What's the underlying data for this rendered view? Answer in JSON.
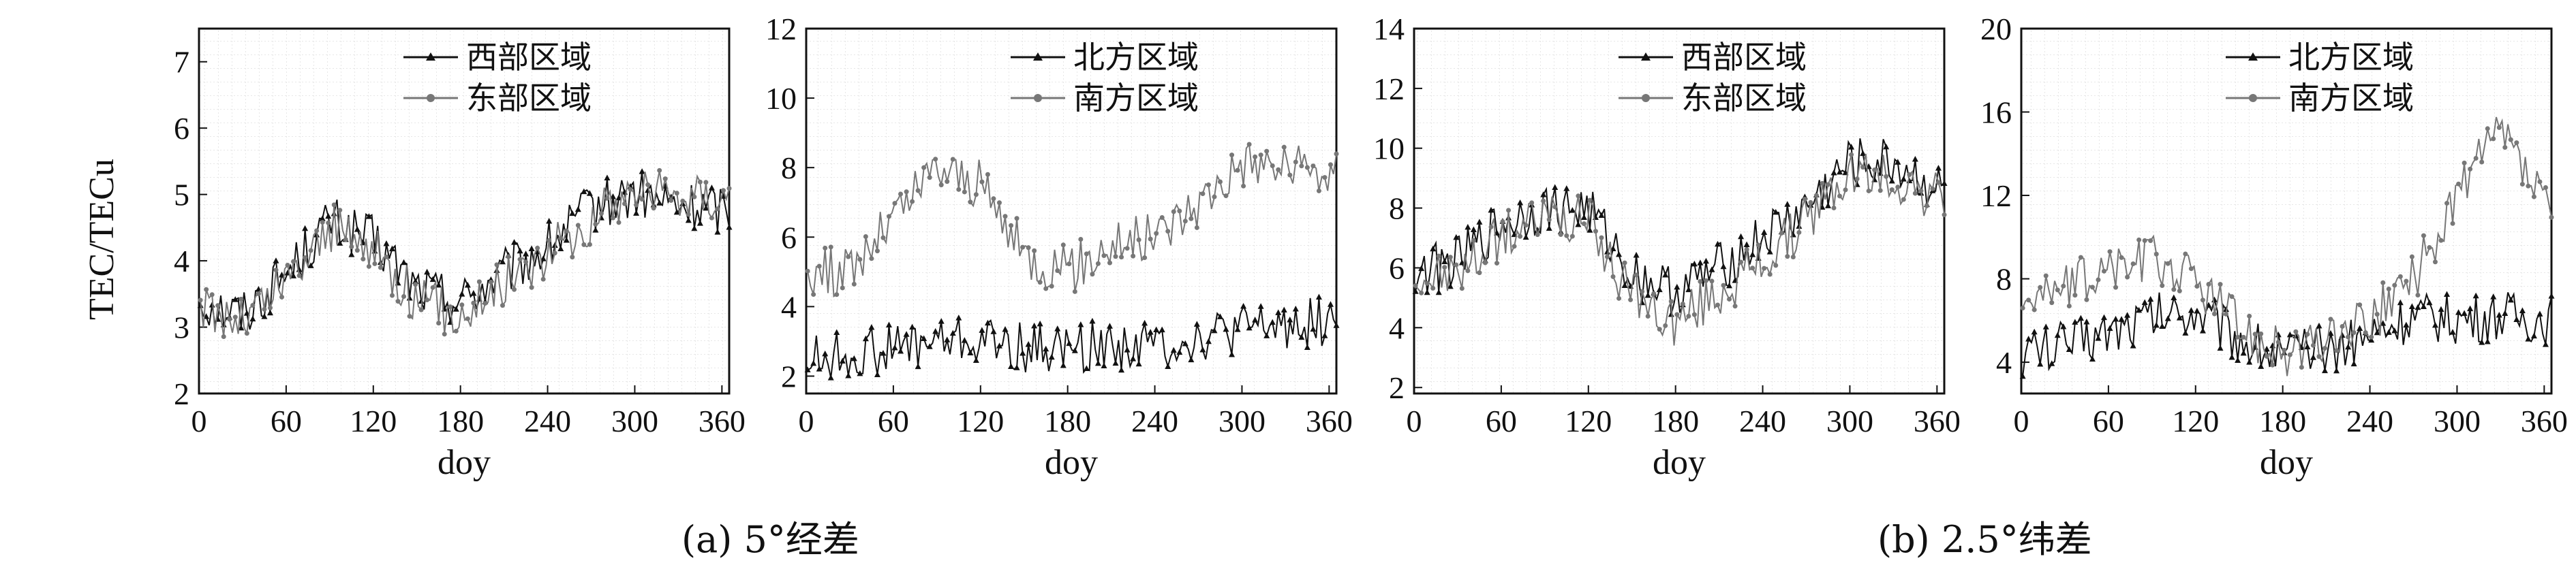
{
  "captions": {
    "a": "(a) 5°经差",
    "b": "(b) 2.5°纬差"
  },
  "chart_data": [
    {
      "type": "line",
      "ylabel": "TEC/TECu",
      "xlabel": "doy",
      "xlim": [
        0,
        365
      ],
      "ylim": [
        2,
        7.5
      ],
      "xticks": [
        0,
        60,
        120,
        180,
        240,
        300,
        360
      ],
      "yticks": [
        2,
        3,
        4,
        5,
        6,
        7
      ],
      "grid": true,
      "legend_position": "top-right",
      "series": [
        {
          "name": "西部区域",
          "marker": "triangle",
          "color": "#111111",
          "knots": [
            [
              0,
              3.4
            ],
            [
              30,
              3.2
            ],
            [
              60,
              3.8
            ],
            [
              90,
              4.6
            ],
            [
              120,
              4.3
            ],
            [
              150,
              3.6
            ],
            [
              180,
              3.4
            ],
            [
              210,
              3.8
            ],
            [
              240,
              4.2
            ],
            [
              270,
              4.8
            ],
            [
              300,
              5.0
            ],
            [
              330,
              4.8
            ],
            [
              365,
              4.8
            ]
          ]
        },
        {
          "name": "东部区域",
          "marker": "circle",
          "color": "#777777",
          "knots": [
            [
              0,
              3.3
            ],
            [
              30,
              3.1
            ],
            [
              60,
              3.7
            ],
            [
              90,
              4.5
            ],
            [
              120,
              4.2
            ],
            [
              150,
              3.4
            ],
            [
              180,
              3.2
            ],
            [
              210,
              3.7
            ],
            [
              240,
              4.1
            ],
            [
              270,
              4.6
            ],
            [
              300,
              5.1
            ],
            [
              330,
              5.0
            ],
            [
              365,
              5.0
            ]
          ]
        }
      ]
    },
    {
      "type": "line",
      "ylabel": "",
      "xlabel": "doy",
      "xlim": [
        0,
        365
      ],
      "ylim": [
        1.5,
        12
      ],
      "xticks": [
        0,
        60,
        120,
        180,
        240,
        300,
        360
      ],
      "yticks": [
        2,
        4,
        6,
        8,
        10,
        12
      ],
      "grid": true,
      "legend_position": "top-right",
      "series": [
        {
          "name": "北方区域",
          "marker": "triangle",
          "color": "#111111",
          "knots": [
            [
              0,
              2.5
            ],
            [
              30,
              2.6
            ],
            [
              60,
              2.8
            ],
            [
              90,
              3.0
            ],
            [
              120,
              3.0
            ],
            [
              150,
              2.8
            ],
            [
              180,
              2.8
            ],
            [
              210,
              2.9
            ],
            [
              240,
              2.9
            ],
            [
              270,
              3.1
            ],
            [
              300,
              3.3
            ],
            [
              330,
              3.5
            ],
            [
              365,
              3.6
            ]
          ]
        },
        {
          "name": "南方区域",
          "marker": "circle",
          "color": "#777777",
          "knots": [
            [
              0,
              5.0
            ],
            [
              30,
              5.0
            ],
            [
              60,
              6.5
            ],
            [
              90,
              8.0
            ],
            [
              120,
              7.5
            ],
            [
              150,
              5.5
            ],
            [
              180,
              5.0
            ],
            [
              210,
              5.8
            ],
            [
              240,
              6.0
            ],
            [
              270,
              7.0
            ],
            [
              300,
              8.2
            ],
            [
              330,
              8.0
            ],
            [
              365,
              7.8
            ]
          ]
        }
      ]
    },
    {
      "type": "line",
      "ylabel": "",
      "xlabel": "doy",
      "xlim": [
        0,
        365
      ],
      "ylim": [
        1.8,
        14
      ],
      "xticks": [
        0,
        60,
        120,
        180,
        240,
        300,
        360
      ],
      "yticks": [
        2,
        4,
        6,
        8,
        10,
        12,
        14
      ],
      "grid": true,
      "legend_position": "top-right",
      "series": [
        {
          "name": "西部区域",
          "marker": "triangle",
          "color": "#111111",
          "knots": [
            [
              0,
              5.8
            ],
            [
              30,
              6.2
            ],
            [
              60,
              7.5
            ],
            [
              90,
              8.0
            ],
            [
              120,
              8.0
            ],
            [
              150,
              5.8
            ],
            [
              180,
              5.2
            ],
            [
              210,
              6.0
            ],
            [
              240,
              7.0
            ],
            [
              270,
              8.0
            ],
            [
              300,
              9.5
            ],
            [
              330,
              9.5
            ],
            [
              365,
              8.5
            ]
          ]
        },
        {
          "name": "东部区域",
          "marker": "circle",
          "color": "#777777",
          "knots": [
            [
              0,
              5.6
            ],
            [
              30,
              5.8
            ],
            [
              60,
              7.0
            ],
            [
              90,
              7.8
            ],
            [
              120,
              7.5
            ],
            [
              150,
              5.0
            ],
            [
              180,
              4.2
            ],
            [
              210,
              5.2
            ],
            [
              240,
              6.2
            ],
            [
              270,
              7.5
            ],
            [
              300,
              9.2
            ],
            [
              330,
              9.0
            ],
            [
              365,
              8.3
            ]
          ]
        }
      ]
    },
    {
      "type": "line",
      "ylabel": "",
      "xlabel": "doy",
      "xlim": [
        0,
        365
      ],
      "ylim": [
        2.5,
        20
      ],
      "xticks": [
        0,
        60,
        120,
        180,
        240,
        300,
        360
      ],
      "yticks": [
        4,
        8,
        12,
        16,
        20
      ],
      "grid": true,
      "legend_position": "top-right",
      "series": [
        {
          "name": "北方区域",
          "marker": "triangle",
          "color": "#111111",
          "knots": [
            [
              0,
              4.5
            ],
            [
              30,
              4.8
            ],
            [
              60,
              5.5
            ],
            [
              90,
              6.2
            ],
            [
              120,
              6.5
            ],
            [
              150,
              5.2
            ],
            [
              180,
              4.3
            ],
            [
              210,
              4.6
            ],
            [
              240,
              5.3
            ],
            [
              270,
              6.2
            ],
            [
              300,
              6.0
            ],
            [
              330,
              6.2
            ],
            [
              365,
              6.0
            ]
          ]
        },
        {
          "name": "南方区域",
          "marker": "circle",
          "color": "#777777",
          "knots": [
            [
              0,
              7.2
            ],
            [
              30,
              7.5
            ],
            [
              60,
              8.5
            ],
            [
              90,
              9.0
            ],
            [
              120,
              8.0
            ],
            [
              150,
              5.8
            ],
            [
              180,
              4.3
            ],
            [
              210,
              5.0
            ],
            [
              240,
              6.0
            ],
            [
              270,
              8.0
            ],
            [
              300,
              12.0
            ],
            [
              330,
              15.0
            ],
            [
              365,
              11.0
            ]
          ]
        }
      ]
    }
  ]
}
